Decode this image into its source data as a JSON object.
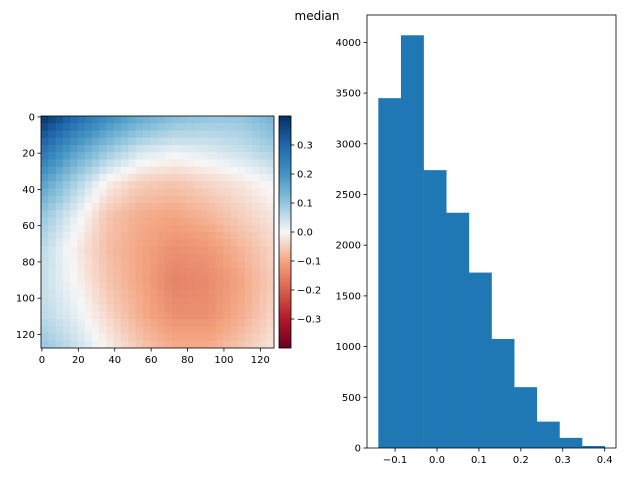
{
  "title": "median",
  "chart_data": [
    {
      "type": "heatmap",
      "title": "",
      "xlabel": "",
      "ylabel": "",
      "xlim": [
        0,
        127
      ],
      "ylim": [
        127,
        0
      ],
      "xticks": [
        "0",
        "20",
        "40",
        "60",
        "80",
        "100",
        "120"
      ],
      "yticks": [
        "0",
        "20",
        "40",
        "60",
        "80",
        "100",
        "120"
      ],
      "colormap": "RdBu",
      "vmin": -0.4,
      "vmax": 0.4,
      "colorbar_ticks": [
        "0.3",
        "0.2",
        "0.1",
        "0.0",
        "−0.1",
        "−0.2",
        "−0.3"
      ],
      "colorbar_tick_values": [
        0.3,
        0.2,
        0.1,
        0.0,
        -0.1,
        -0.2,
        -0.3
      ],
      "grid": false,
      "field_approx": [
        [
          0.4,
          0.3,
          0.22,
          0.16,
          0.12,
          0.1,
          0.1,
          0.14
        ],
        [
          0.28,
          0.18,
          0.1,
          0.04,
          0.02,
          0.03,
          0.05,
          0.08
        ],
        [
          0.18,
          0.08,
          -0.01,
          -0.05,
          -0.06,
          -0.04,
          -0.02,
          0.01
        ],
        [
          0.1,
          0.02,
          -0.06,
          -0.09,
          -0.1,
          -0.08,
          -0.05,
          -0.02
        ],
        [
          0.06,
          -0.01,
          -0.07,
          -0.1,
          -0.13,
          -0.12,
          -0.08,
          -0.04
        ],
        [
          0.05,
          0.0,
          -0.06,
          -0.1,
          -0.15,
          -0.14,
          -0.1,
          -0.05
        ],
        [
          0.06,
          0.02,
          -0.04,
          -0.09,
          -0.13,
          -0.13,
          -0.09,
          -0.04
        ],
        [
          0.1,
          0.05,
          -0.01,
          -0.06,
          -0.09,
          -0.09,
          -0.06,
          -0.02
        ]
      ]
    },
    {
      "type": "bar",
      "subtype": "histogram",
      "title": "median",
      "xlabel": "",
      "ylabel": "",
      "bin_edges": [
        -0.14,
        -0.086,
        -0.032,
        0.022,
        0.076,
        0.13,
        0.184,
        0.238,
        0.292,
        0.346,
        0.4
      ],
      "values": [
        3450,
        4070,
        2740,
        2320,
        1730,
        1075,
        600,
        260,
        100,
        20
      ],
      "xlim": [
        -0.167,
        0.427
      ],
      "ylim": [
        0,
        4270
      ],
      "xticks": [
        "−0.1",
        "0.0",
        "0.1",
        "0.2",
        "0.3",
        "0.4"
      ],
      "xtick_values": [
        -0.1,
        0.0,
        0.1,
        0.2,
        0.3,
        0.4
      ],
      "yticks": [
        "0",
        "500",
        "1000",
        "1500",
        "2000",
        "2500",
        "3000",
        "3500",
        "4000"
      ],
      "ytick_values": [
        0,
        500,
        1000,
        1500,
        2000,
        2500,
        3000,
        3500,
        4000
      ],
      "bar_color": "#1f77b4",
      "grid": false
    }
  ]
}
